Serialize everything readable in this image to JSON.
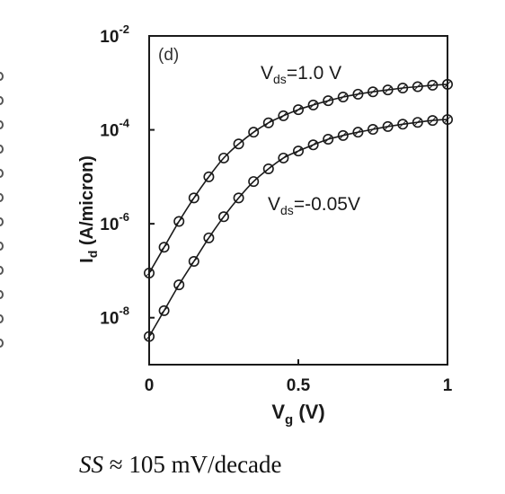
{
  "chart_data": {
    "type": "scatter",
    "panel_label": "(d)",
    "xlabel": {
      "main": "V",
      "sub": "g",
      "unit": " (V)"
    },
    "ylabel": {
      "main": "I",
      "sub": "d",
      "unit": " (A/micron)"
    },
    "xlim": [
      0,
      1
    ],
    "ylim_exponent": [
      -9,
      -2
    ],
    "yscale": "log",
    "x_ticks": [
      "0",
      "0.5",
      "1"
    ],
    "y_ticks": [
      {
        "base": "10",
        "exp": "-2",
        "value": -2
      },
      {
        "base": "10",
        "exp": "-4",
        "value": -4
      },
      {
        "base": "10",
        "exp": "-6",
        "value": -6
      },
      {
        "base": "10",
        "exp": "-8",
        "value": -8
      }
    ],
    "grid": false,
    "legend": "none",
    "series": [
      {
        "label": {
          "main": "V",
          "sub": "ds",
          "rest": "=1.0 V"
        },
        "color": "#1a1a1a",
        "x": [
          0,
          0.05,
          0.1,
          0.15,
          0.2,
          0.25,
          0.3,
          0.35,
          0.4,
          0.45,
          0.5,
          0.55,
          0.6,
          0.65,
          0.7,
          0.75,
          0.8,
          0.85,
          0.9,
          0.95,
          1.0
        ],
        "log10_y": [
          -7.05,
          -6.5,
          -5.95,
          -5.45,
          -5.0,
          -4.6,
          -4.3,
          -4.05,
          -3.85,
          -3.7,
          -3.57,
          -3.47,
          -3.38,
          -3.3,
          -3.24,
          -3.19,
          -3.15,
          -3.11,
          -3.08,
          -3.05,
          -3.03
        ]
      },
      {
        "label": {
          "main": "V",
          "sub": "ds",
          "rest": "=-0.05V"
        },
        "color": "#1a1a1a",
        "x": [
          0,
          0.05,
          0.1,
          0.15,
          0.2,
          0.25,
          0.3,
          0.35,
          0.4,
          0.45,
          0.5,
          0.55,
          0.6,
          0.65,
          0.7,
          0.75,
          0.8,
          0.85,
          0.9,
          0.95,
          1.0
        ],
        "log10_y": [
          -8.4,
          -7.85,
          -7.3,
          -6.8,
          -6.3,
          -5.85,
          -5.45,
          -5.1,
          -4.83,
          -4.6,
          -4.45,
          -4.32,
          -4.2,
          -4.12,
          -4.05,
          -3.99,
          -3.93,
          -3.88,
          -3.84,
          -3.8,
          -3.78
        ]
      }
    ]
  },
  "caption": {
    "var": "SS",
    "approx": "≈",
    "text": "105 mV/decade"
  }
}
